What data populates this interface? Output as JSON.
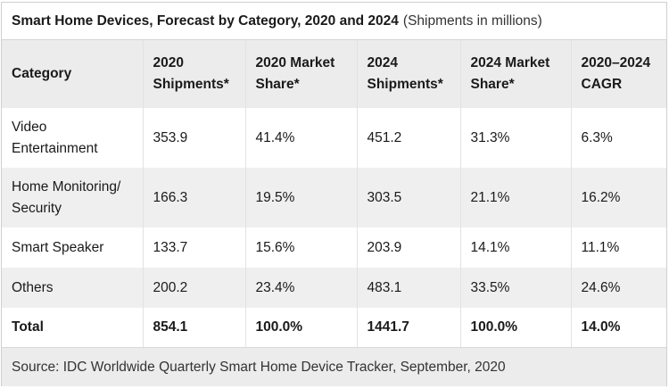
{
  "caption": {
    "title": "Smart Home Devices, Forecast by Category, 2020 and 2024",
    "subtitle": "(Shipments in millions)"
  },
  "columns": [
    "Category",
    "2020 Shipments*",
    "2020 Market Share*",
    "2024 Shipments*",
    "2024 Market Share*",
    "2020–2024 CAGR"
  ],
  "rows": [
    [
      "Video Entertainment",
      "353.9",
      "41.4%",
      "451.2",
      "31.3%",
      "6.3%"
    ],
    [
      "Home Monitoring/ Security",
      "166.3",
      "19.5%",
      "303.5",
      "21.1%",
      "16.2%"
    ],
    [
      "Smart Speaker",
      "133.7",
      "15.6%",
      "203.9",
      "14.1%",
      "11.1%"
    ],
    [
      "Others",
      "200.2",
      "23.4%",
      "483.1",
      "33.5%",
      "24.6%"
    ]
  ],
  "total": [
    "Total",
    "854.1",
    "100.0%",
    "1441.7",
    "100.0%",
    "14.0%"
  ],
  "source": "Source: IDC Worldwide Quarterly Smart Home Device Tracker, September, 2020"
}
